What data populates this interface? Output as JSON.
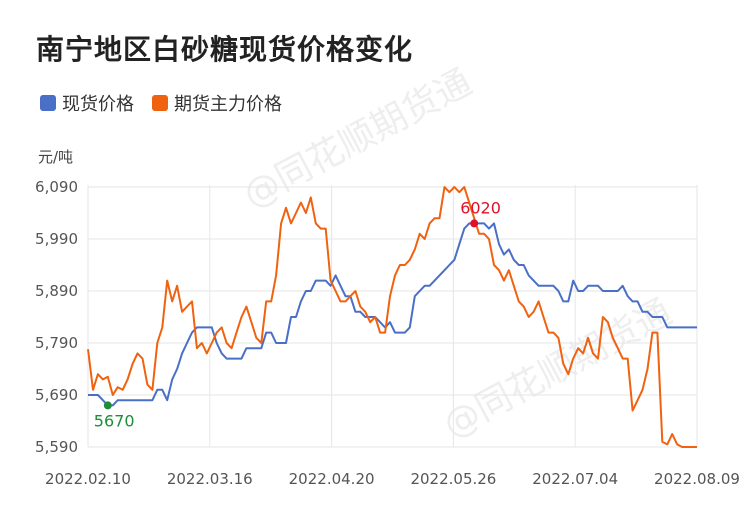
{
  "title": "南宁地区白砂糖现货价格变化",
  "unit": "元/吨",
  "watermark": "@同花顺期货通",
  "colors": {
    "spot": "#4a6fc7",
    "futures": "#f0620f",
    "min_marker": "#1e8c3a",
    "max_marker": "#e0102a",
    "grid": "#e6e6e6"
  },
  "chart_data": {
    "type": "line",
    "ylim": [
      5590,
      6090
    ],
    "yticks": [
      "6,090",
      "5,990",
      "5,890",
      "5,790",
      "5,690",
      "5,590"
    ],
    "ytick_values": [
      6090,
      5990,
      5890,
      5790,
      5690,
      5590
    ],
    "xticks": [
      "2022.02.10",
      "2022.03.16",
      "2022.04.20",
      "2022.05.26",
      "2022.07.04",
      "2022.08.09"
    ],
    "xlim": [
      0,
      123
    ],
    "xtick_positions": [
      0,
      24.6,
      49.2,
      73.8,
      98.4,
      123
    ],
    "series": [
      {
        "name": "现货价格",
        "key": "spot",
        "values": [
          5690,
          5690,
          5690,
          5680,
          5670,
          5670,
          5680,
          5680,
          5680,
          5680,
          5680,
          5680,
          5680,
          5680,
          5700,
          5700,
          5680,
          5720,
          5740,
          5770,
          5790,
          5810,
          5820,
          5820,
          5820,
          5820,
          5790,
          5770,
          5760,
          5760,
          5760,
          5760,
          5780,
          5780,
          5780,
          5780,
          5810,
          5810,
          5790,
          5790,
          5790,
          5840,
          5840,
          5870,
          5890,
          5890,
          5910,
          5910,
          5910,
          5900,
          5920,
          5900,
          5880,
          5880,
          5850,
          5850,
          5840,
          5840,
          5840,
          5830,
          5820,
          5830,
          5810,
          5810,
          5810,
          5820,
          5880,
          5890,
          5900,
          5900,
          5910,
          5920,
          5930,
          5940,
          5950,
          5980,
          6010,
          6020,
          6020,
          6020,
          6020,
          6010,
          6020,
          5980,
          5960,
          5970,
          5950,
          5940,
          5940,
          5920,
          5910,
          5900,
          5900,
          5900,
          5900,
          5890,
          5870,
          5870,
          5910,
          5890,
          5890,
          5900,
          5900,
          5900,
          5890,
          5890,
          5890,
          5890,
          5900,
          5880,
          5870,
          5870,
          5850,
          5850,
          5840,
          5840,
          5840,
          5820,
          5820,
          5820,
          5820,
          5820,
          5820,
          5820
        ]
      },
      {
        "name": "期货主力价格",
        "key": "futures",
        "values": [
          5778,
          5700,
          5730,
          5720,
          5725,
          5690,
          5705,
          5700,
          5720,
          5750,
          5770,
          5760,
          5710,
          5700,
          5790,
          5820,
          5910,
          5870,
          5900,
          5850,
          5860,
          5870,
          5780,
          5790,
          5770,
          5790,
          5810,
          5820,
          5790,
          5780,
          5810,
          5840,
          5860,
          5830,
          5800,
          5790,
          5870,
          5870,
          5920,
          6020,
          6050,
          6020,
          6040,
          6060,
          6040,
          6070,
          6020,
          6010,
          6010,
          5910,
          5890,
          5870,
          5870,
          5880,
          5890,
          5860,
          5850,
          5830,
          5840,
          5810,
          5810,
          5880,
          5920,
          5940,
          5940,
          5950,
          5970,
          6000,
          5990,
          6020,
          6030,
          6030,
          6090,
          6080,
          6090,
          6080,
          6090,
          6060,
          6030,
          6000,
          6000,
          5990,
          5940,
          5930,
          5910,
          5930,
          5900,
          5870,
          5860,
          5840,
          5850,
          5870,
          5840,
          5810,
          5810,
          5800,
          5750,
          5730,
          5760,
          5780,
          5770,
          5800,
          5770,
          5760,
          5840,
          5830,
          5800,
          5780,
          5760,
          5760,
          5660,
          5680,
          5700,
          5740,
          5810,
          5810,
          5600,
          5595,
          5615,
          5595,
          5590,
          5590,
          5590,
          5590
        ]
      }
    ],
    "annotations": [
      {
        "label": "5670",
        "series": "spot",
        "index": 4,
        "value": 5670,
        "kind": "min"
      },
      {
        "label": "6020",
        "series": "spot",
        "index": 78,
        "value": 6020,
        "kind": "max"
      }
    ]
  }
}
